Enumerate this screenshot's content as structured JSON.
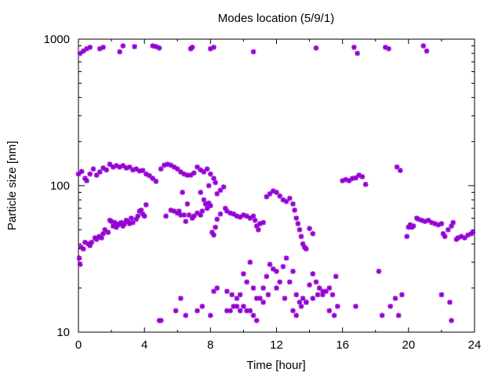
{
  "chart_data": {
    "type": "scatter",
    "title": "Modes location (5/9/1)",
    "xlabel": "Time [hour]",
    "ylabel": "Particle size [nm]",
    "xlim": [
      0,
      24
    ],
    "ylim": [
      10,
      1000
    ],
    "yscale": "log",
    "xticks": [
      "0",
      "4",
      "8",
      "12",
      "16",
      "20",
      "24"
    ],
    "yticks": [
      "10",
      "100",
      "1000"
    ],
    "grid": false,
    "marker": "star",
    "color": "#9400d3",
    "series": [
      {
        "values": [
          [
            0.05,
            32
          ],
          [
            0.1,
            29
          ],
          [
            0.15,
            38
          ],
          [
            0.3,
            37
          ],
          [
            0.4,
            41
          ],
          [
            0.6,
            40
          ],
          [
            0.7,
            39
          ],
          [
            0.8,
            41
          ],
          [
            1.0,
            44
          ],
          [
            1.1,
            43
          ],
          [
            1.25,
            45
          ],
          [
            1.4,
            44
          ],
          [
            1.5,
            47
          ],
          [
            1.6,
            50
          ],
          [
            1.8,
            48
          ],
          [
            1.9,
            58
          ],
          [
            2.0,
            57
          ],
          [
            2.1,
            53
          ],
          [
            2.2,
            56
          ],
          [
            2.3,
            52
          ],
          [
            2.4,
            54
          ],
          [
            2.5,
            55
          ],
          [
            2.6,
            56
          ],
          [
            2.7,
            53
          ],
          [
            2.8,
            55
          ],
          [
            2.9,
            58
          ],
          [
            3.0,
            57
          ],
          [
            3.1,
            55
          ],
          [
            3.2,
            60
          ],
          [
            3.3,
            56
          ],
          [
            3.5,
            59
          ],
          [
            3.6,
            62
          ],
          [
            3.7,
            67
          ],
          [
            3.8,
            68
          ],
          [
            3.9,
            64
          ],
          [
            4.0,
            62
          ],
          [
            4.1,
            74
          ],
          [
            5.3,
            62
          ],
          [
            5.6,
            68
          ],
          [
            5.8,
            67
          ],
          [
            6.0,
            65
          ],
          [
            6.1,
            67
          ],
          [
            6.2,
            63
          ],
          [
            6.4,
            63
          ],
          [
            6.5,
            57
          ],
          [
            6.7,
            63
          ],
          [
            6.9,
            60
          ],
          [
            7.0,
            62
          ],
          [
            7.2,
            65
          ],
          [
            7.4,
            63
          ],
          [
            7.5,
            67
          ],
          [
            7.7,
            75
          ],
          [
            7.8,
            70
          ],
          [
            7.9,
            76
          ],
          [
            8.0,
            73
          ],
          [
            8.1,
            48
          ],
          [
            8.2,
            46
          ],
          [
            8.3,
            52
          ],
          [
            8.4,
            59
          ],
          [
            8.6,
            64
          ],
          [
            8.9,
            70
          ],
          [
            9.0,
            67
          ],
          [
            9.2,
            65
          ],
          [
            9.4,
            64
          ],
          [
            9.6,
            62
          ],
          [
            9.8,
            61
          ],
          [
            10.0,
            63
          ],
          [
            10.2,
            62
          ],
          [
            10.4,
            60
          ],
          [
            10.6,
            62
          ],
          [
            10.7,
            58
          ],
          [
            10.8,
            53
          ],
          [
            10.9,
            50
          ],
          [
            11.0,
            55
          ],
          [
            11.2,
            56
          ],
          [
            11.4,
            84
          ],
          [
            11.6,
            88
          ],
          [
            11.8,
            92
          ],
          [
            12.0,
            90
          ],
          [
            12.2,
            85
          ],
          [
            12.4,
            80
          ],
          [
            12.6,
            78
          ],
          [
            12.8,
            82
          ],
          [
            13.0,
            75
          ],
          [
            13.1,
            68
          ],
          [
            13.2,
            60
          ],
          [
            13.3,
            55
          ],
          [
            13.4,
            50
          ],
          [
            13.5,
            45
          ],
          [
            13.6,
            40
          ],
          [
            13.7,
            38
          ],
          [
            13.8,
            37
          ],
          [
            14.0,
            51
          ],
          [
            14.2,
            47
          ],
          [
            19.9,
            45
          ],
          [
            20.0,
            52
          ],
          [
            20.1,
            54
          ],
          [
            20.2,
            52
          ],
          [
            20.3,
            53
          ],
          [
            20.5,
            60
          ],
          [
            20.6,
            59
          ],
          [
            20.8,
            58
          ],
          [
            21.0,
            57
          ],
          [
            21.2,
            58
          ],
          [
            21.4,
            56
          ],
          [
            21.6,
            55
          ],
          [
            21.8,
            54
          ],
          [
            22.0,
            55
          ],
          [
            22.1,
            47
          ],
          [
            22.2,
            45
          ],
          [
            22.4,
            50
          ],
          [
            22.6,
            53
          ],
          [
            22.7,
            56
          ],
          [
            22.9,
            43
          ],
          [
            23.0,
            44
          ],
          [
            23.2,
            45
          ],
          [
            23.4,
            44
          ],
          [
            23.6,
            46
          ],
          [
            23.8,
            47
          ],
          [
            23.9,
            48
          ]
        ]
      },
      {
        "values": [
          [
            0.0,
            120
          ],
          [
            0.2,
            125
          ],
          [
            0.4,
            112
          ],
          [
            0.5,
            108
          ],
          [
            0.7,
            120
          ],
          [
            0.9,
            130
          ],
          [
            1.1,
            118
          ],
          [
            1.3,
            124
          ],
          [
            1.5,
            132
          ],
          [
            1.7,
            128
          ],
          [
            1.9,
            140
          ],
          [
            2.1,
            134
          ],
          [
            2.3,
            137
          ],
          [
            2.5,
            134
          ],
          [
            2.7,
            137
          ],
          [
            2.9,
            132
          ],
          [
            3.1,
            134
          ],
          [
            3.3,
            128
          ],
          [
            3.5,
            130
          ],
          [
            3.7,
            126
          ],
          [
            3.9,
            127
          ],
          [
            4.1,
            120
          ],
          [
            4.3,
            117
          ],
          [
            4.5,
            112
          ],
          [
            4.7,
            107
          ],
          [
            5.0,
            130
          ],
          [
            5.2,
            138
          ],
          [
            5.4,
            140
          ],
          [
            5.6,
            138
          ],
          [
            5.8,
            134
          ],
          [
            6.0,
            130
          ],
          [
            6.2,
            124
          ],
          [
            6.4,
            120
          ],
          [
            6.6,
            118
          ],
          [
            6.8,
            118
          ],
          [
            7.0,
            122
          ],
          [
            7.2,
            134
          ],
          [
            7.4,
            128
          ],
          [
            7.6,
            124
          ],
          [
            7.8,
            130
          ],
          [
            8.0,
            120
          ],
          [
            8.2,
            112
          ],
          [
            8.3,
            105
          ],
          [
            6.3,
            90
          ],
          [
            6.6,
            75
          ],
          [
            7.4,
            90
          ],
          [
            7.6,
            80
          ],
          [
            7.9,
            100
          ],
          [
            8.4,
            88
          ],
          [
            8.6,
            93
          ],
          [
            8.8,
            98
          ],
          [
            16.0,
            108
          ],
          [
            16.2,
            110
          ],
          [
            16.4,
            108
          ],
          [
            16.6,
            112
          ],
          [
            16.8,
            113
          ],
          [
            17.0,
            118
          ],
          [
            17.2,
            115
          ],
          [
            17.4,
            102
          ],
          [
            19.3,
            134
          ],
          [
            19.5,
            127
          ]
        ]
      },
      {
        "values": [
          [
            4.9,
            12
          ],
          [
            5.0,
            12
          ],
          [
            5.9,
            14
          ],
          [
            6.2,
            17
          ],
          [
            6.5,
            13
          ],
          [
            7.2,
            14
          ],
          [
            7.5,
            15
          ],
          [
            8.0,
            13
          ],
          [
            8.2,
            19
          ],
          [
            8.4,
            20
          ],
          [
            9.0,
            14
          ],
          [
            9.2,
            14
          ],
          [
            9.4,
            15
          ],
          [
            9.6,
            15
          ],
          [
            9.8,
            14
          ],
          [
            10.0,
            15
          ],
          [
            10.2,
            14
          ],
          [
            10.4,
            14
          ],
          [
            10.6,
            13
          ],
          [
            10.8,
            12
          ],
          [
            9.0,
            19
          ],
          [
            9.3,
            18
          ],
          [
            9.6,
            17
          ],
          [
            9.8,
            18
          ],
          [
            10.0,
            25
          ],
          [
            10.2,
            22
          ],
          [
            10.4,
            30
          ],
          [
            10.6,
            20
          ],
          [
            10.8,
            17
          ],
          [
            11.0,
            17
          ],
          [
            11.2,
            20
          ],
          [
            11.4,
            24
          ],
          [
            11.6,
            29
          ],
          [
            11.8,
            27
          ],
          [
            12.0,
            26
          ],
          [
            12.2,
            22
          ],
          [
            12.4,
            28
          ],
          [
            12.6,
            32
          ],
          [
            12.8,
            22
          ],
          [
            13.0,
            26
          ],
          [
            13.2,
            18
          ],
          [
            13.4,
            16
          ],
          [
            13.6,
            17
          ],
          [
            13.8,
            16
          ],
          [
            14.0,
            21
          ],
          [
            14.2,
            25
          ],
          [
            14.4,
            22
          ],
          [
            14.6,
            20
          ],
          [
            14.8,
            18
          ],
          [
            15.0,
            19
          ],
          [
            15.2,
            20
          ],
          [
            15.4,
            18
          ],
          [
            15.6,
            24
          ],
          [
            11.2,
            16
          ],
          [
            11.5,
            18
          ],
          [
            12.0,
            20
          ],
          [
            12.5,
            17
          ],
          [
            13.0,
            14
          ],
          [
            13.2,
            13
          ],
          [
            13.5,
            15
          ],
          [
            13.8,
            16
          ],
          [
            14.2,
            17
          ],
          [
            14.5,
            18
          ],
          [
            14.8,
            19
          ],
          [
            15.2,
            14
          ],
          [
            15.5,
            13
          ],
          [
            15.7,
            15
          ],
          [
            16.8,
            15
          ],
          [
            18.2,
            26
          ],
          [
            18.4,
            13
          ],
          [
            18.9,
            15
          ],
          [
            19.2,
            17
          ],
          [
            19.4,
            13
          ],
          [
            19.6,
            18
          ],
          [
            22.0,
            18
          ],
          [
            22.5,
            16
          ],
          [
            22.6,
            12
          ]
        ]
      },
      {
        "values": [
          [
            0.1,
            800
          ],
          [
            0.3,
            830
          ],
          [
            0.5,
            860
          ],
          [
            0.7,
            880
          ],
          [
            1.3,
            860
          ],
          [
            1.5,
            880
          ],
          [
            2.5,
            820
          ],
          [
            2.7,
            900
          ],
          [
            3.4,
            890
          ],
          [
            4.5,
            900
          ],
          [
            4.7,
            890
          ],
          [
            4.9,
            870
          ],
          [
            6.8,
            860
          ],
          [
            6.9,
            880
          ],
          [
            8.0,
            860
          ],
          [
            8.2,
            880
          ],
          [
            10.6,
            820
          ],
          [
            14.4,
            870
          ],
          [
            16.7,
            880
          ],
          [
            16.9,
            800
          ],
          [
            18.6,
            880
          ],
          [
            18.8,
            860
          ],
          [
            20.9,
            900
          ],
          [
            21.1,
            830
          ]
        ]
      }
    ]
  }
}
